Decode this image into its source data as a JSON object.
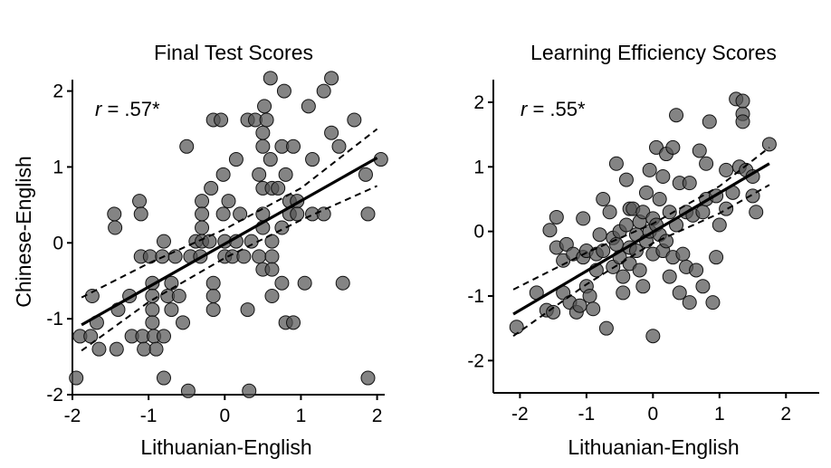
{
  "shared": {
    "ylabel": "Chinese-English"
  },
  "chart_data": [
    {
      "type": "scatter",
      "title": "Final Test Scores",
      "xlabel": "Lithuanian-English",
      "ylabel": "Chinese-English",
      "xlim": [
        -2,
        2.1
      ],
      "ylim": [
        -2,
        2.15
      ],
      "xticks": [
        -2,
        -1,
        0,
        1,
        2
      ],
      "yticks": [
        -2,
        -1,
        0,
        1,
        2
      ],
      "annotation": {
        "r": "r",
        "rest": " = .57*"
      },
      "fit": {
        "x": [
          -1.88,
          2.0
        ],
        "y": [
          -1.08,
          1.12
        ]
      },
      "ci_upper": {
        "x": [
          -1.88,
          -1.0,
          0.0,
          1.0,
          2.0
        ],
        "y": [
          -0.72,
          -0.27,
          0.18,
          0.72,
          1.5
        ]
      },
      "ci_lower": {
        "x": [
          -1.88,
          -1.0,
          0.0,
          1.0,
          2.0
        ],
        "y": [
          -1.42,
          -0.78,
          -0.2,
          0.3,
          0.75
        ]
      },
      "points": [
        [
          -1.95,
          -1.78
        ],
        [
          -1.9,
          -1.23
        ],
        [
          -1.76,
          -1.23
        ],
        [
          -1.74,
          -0.7
        ],
        [
          -1.68,
          -1.05
        ],
        [
          -1.65,
          -1.4
        ],
        [
          -1.45,
          0.38
        ],
        [
          -1.44,
          0.2
        ],
        [
          -1.42,
          -1.4
        ],
        [
          -1.4,
          -0.88
        ],
        [
          -1.25,
          -0.7
        ],
        [
          -1.22,
          -1.23
        ],
        [
          -1.12,
          0.55
        ],
        [
          -1.1,
          0.38
        ],
        [
          -1.1,
          -0.18
        ],
        [
          -1.08,
          -1.23
        ],
        [
          -1.06,
          -1.4
        ],
        [
          -0.98,
          -0.18
        ],
        [
          -0.95,
          -0.53
        ],
        [
          -0.95,
          -0.7
        ],
        [
          -0.95,
          -0.88
        ],
        [
          -0.95,
          -1.05
        ],
        [
          -0.93,
          -1.23
        ],
        [
          -0.9,
          -1.4
        ],
        [
          -0.82,
          -0.18
        ],
        [
          -0.8,
          0.02
        ],
        [
          -0.8,
          -1.23
        ],
        [
          -0.8,
          -1.78
        ],
        [
          -0.75,
          -0.7
        ],
        [
          -0.7,
          -0.53
        ],
        [
          -0.7,
          -0.88
        ],
        [
          -0.65,
          -0.18
        ],
        [
          -0.6,
          -0.7
        ],
        [
          -0.55,
          -1.05
        ],
        [
          -0.5,
          1.27
        ],
        [
          -0.48,
          -1.95
        ],
        [
          -0.45,
          -0.18
        ],
        [
          -0.38,
          0.02
        ],
        [
          -0.32,
          -0.18
        ],
        [
          -0.3,
          0.55
        ],
        [
          -0.3,
          0.38
        ],
        [
          -0.3,
          0.2
        ],
        [
          -0.3,
          0.02
        ],
        [
          -0.2,
          0.02
        ],
        [
          -0.18,
          0.72
        ],
        [
          -0.15,
          1.62
        ],
        [
          -0.15,
          -0.53
        ],
        [
          -0.15,
          -0.7
        ],
        [
          -0.15,
          -0.88
        ],
        [
          -0.05,
          1.62
        ],
        [
          -0.02,
          0.9
        ],
        [
          -0.02,
          0.38
        ],
        [
          0.0,
          0.02
        ],
        [
          0.0,
          -0.18
        ],
        [
          0.05,
          0.55
        ],
        [
          0.1,
          -0.18
        ],
        [
          0.15,
          1.1
        ],
        [
          0.15,
          0.02
        ],
        [
          0.2,
          0.38
        ],
        [
          0.25,
          -0.18
        ],
        [
          0.3,
          1.62
        ],
        [
          0.3,
          -0.88
        ],
        [
          0.32,
          -1.95
        ],
        [
          0.35,
          0.02
        ],
        [
          0.4,
          1.62
        ],
        [
          0.45,
          0.9
        ],
        [
          0.45,
          -0.18
        ],
        [
          0.5,
          1.45
        ],
        [
          0.5,
          1.27
        ],
        [
          0.5,
          0.72
        ],
        [
          0.5,
          0.38
        ],
        [
          0.5,
          0.2
        ],
        [
          0.5,
          -0.35
        ],
        [
          0.52,
          1.8
        ],
        [
          0.55,
          1.62
        ],
        [
          0.6,
          2.17
        ],
        [
          0.6,
          1.1
        ],
        [
          0.62,
          0.72
        ],
        [
          0.62,
          0.02
        ],
        [
          0.62,
          -0.18
        ],
        [
          0.62,
          -0.35
        ],
        [
          0.62,
          -0.7
        ],
        [
          0.7,
          0.72
        ],
        [
          0.75,
          1.27
        ],
        [
          0.75,
          0.2
        ],
        [
          0.75,
          -0.53
        ],
        [
          0.78,
          2.0
        ],
        [
          0.8,
          0.9
        ],
        [
          0.8,
          -1.05
        ],
        [
          0.85,
          0.55
        ],
        [
          0.85,
          0.38
        ],
        [
          0.9,
          1.27
        ],
        [
          0.9,
          -1.05
        ],
        [
          0.95,
          0.55
        ],
        [
          0.95,
          0.38
        ],
        [
          1.05,
          -0.53
        ],
        [
          1.1,
          1.8
        ],
        [
          1.15,
          1.1
        ],
        [
          1.15,
          0.38
        ],
        [
          1.3,
          2.0
        ],
        [
          1.3,
          0.38
        ],
        [
          1.4,
          1.45
        ],
        [
          1.4,
          2.17
        ],
        [
          1.5,
          1.27
        ],
        [
          1.55,
          -0.53
        ],
        [
          1.7,
          1.62
        ],
        [
          1.85,
          0.9
        ],
        [
          1.88,
          0.38
        ],
        [
          1.88,
          -1.78
        ],
        [
          2.05,
          1.1
        ]
      ]
    },
    {
      "type": "scatter",
      "title": "Learning Efficiency Scores",
      "xlabel": "Lithuanian-English",
      "ylabel": "",
      "xlim": [
        -2.4,
        2.5
      ],
      "ylim": [
        -2.5,
        2.35
      ],
      "xticks": [
        -2,
        -1,
        0,
        1,
        2
      ],
      "yticks": [
        -2,
        -1,
        0,
        1,
        2
      ],
      "annotation": {
        "r": "r",
        "rest": " = .55*"
      },
      "fit": {
        "x": [
          -2.1,
          1.75
        ],
        "y": [
          -1.28,
          1.05
        ]
      },
      "ci_upper": {
        "x": [
          -2.1,
          -1.0,
          0.0,
          1.0,
          1.75
        ],
        "y": [
          -0.9,
          -0.33,
          0.12,
          0.7,
          1.3
        ]
      },
      "ci_lower": {
        "x": [
          -2.1,
          -1.0,
          0.0,
          1.0,
          1.75
        ],
        "y": [
          -1.62,
          -0.82,
          -0.18,
          0.28,
          0.72
        ]
      },
      "points": [
        [
          -2.05,
          -1.48
        ],
        [
          -1.75,
          -0.95
        ],
        [
          -1.6,
          -1.22
        ],
        [
          -1.55,
          0.02
        ],
        [
          -1.5,
          -1.25
        ],
        [
          -1.45,
          0.22
        ],
        [
          -1.45,
          -0.25
        ],
        [
          -1.35,
          -0.45
        ],
        [
          -1.35,
          -0.95
        ],
        [
          -1.3,
          -0.2
        ],
        [
          -1.25,
          -1.1
        ],
        [
          -1.2,
          -0.35
        ],
        [
          -1.15,
          -1.25
        ],
        [
          -1.1,
          -1.15
        ],
        [
          -1.05,
          0.2
        ],
        [
          -1.05,
          -0.4
        ],
        [
          -1.0,
          -0.3
        ],
        [
          -1.0,
          -0.85
        ],
        [
          -0.95,
          -1.0
        ],
        [
          -0.9,
          -1.2
        ],
        [
          -0.85,
          -0.6
        ],
        [
          -0.85,
          -0.35
        ],
        [
          -0.8,
          -0.05
        ],
        [
          -0.75,
          0.5
        ],
        [
          -0.75,
          -0.3
        ],
        [
          -0.7,
          -1.5
        ],
        [
          -0.65,
          0.3
        ],
        [
          -0.6,
          -0.1
        ],
        [
          -0.6,
          -0.55
        ],
        [
          -0.55,
          1.05
        ],
        [
          -0.55,
          -0.2
        ],
        [
          -0.5,
          0.0
        ],
        [
          -0.5,
          -0.4
        ],
        [
          -0.45,
          -0.7
        ],
        [
          -0.45,
          -0.95
        ],
        [
          -0.4,
          0.8
        ],
        [
          -0.4,
          0.1
        ],
        [
          -0.35,
          0.35
        ],
        [
          -0.35,
          -0.25
        ],
        [
          -0.35,
          -0.5
        ],
        [
          -0.3,
          0.35
        ],
        [
          -0.25,
          -0.05
        ],
        [
          -0.25,
          -0.3
        ],
        [
          -0.2,
          0.15
        ],
        [
          -0.2,
          -0.6
        ],
        [
          -0.15,
          0.3
        ],
        [
          -0.15,
          -0.85
        ],
        [
          -0.1,
          0.6
        ],
        [
          -0.1,
          -0.15
        ],
        [
          -0.05,
          0.95
        ],
        [
          -0.05,
          0.0
        ],
        [
          0.0,
          0.2
        ],
        [
          0.0,
          -0.35
        ],
        [
          0.0,
          -1.62
        ],
        [
          0.05,
          1.3
        ],
        [
          0.05,
          0.1
        ],
        [
          0.1,
          0.5
        ],
        [
          0.1,
          -0.05
        ],
        [
          0.15,
          0.85
        ],
        [
          0.15,
          -0.3
        ],
        [
          0.2,
          1.2
        ],
        [
          0.2,
          -0.15
        ],
        [
          0.25,
          0.3
        ],
        [
          0.25,
          -0.7
        ],
        [
          0.3,
          1.3
        ],
        [
          0.3,
          -0.4
        ],
        [
          0.35,
          1.8
        ],
        [
          0.35,
          0.1
        ],
        [
          0.4,
          0.75
        ],
        [
          0.4,
          -0.95
        ],
        [
          0.45,
          -0.35
        ],
        [
          0.5,
          0.3
        ],
        [
          0.5,
          -0.55
        ],
        [
          0.55,
          0.75
        ],
        [
          0.55,
          -1.1
        ],
        [
          0.6,
          0.25
        ],
        [
          0.65,
          -0.6
        ],
        [
          0.7,
          1.25
        ],
        [
          0.75,
          0.3
        ],
        [
          0.75,
          -0.85
        ],
        [
          0.8,
          1.05
        ],
        [
          0.8,
          0.5
        ],
        [
          0.85,
          1.7
        ],
        [
          0.9,
          -1.1
        ],
        [
          0.95,
          0.55
        ],
        [
          0.95,
          -0.4
        ],
        [
          1.0,
          0.1
        ],
        [
          1.1,
          0.95
        ],
        [
          1.1,
          0.35
        ],
        [
          1.2,
          0.6
        ],
        [
          1.25,
          2.05
        ],
        [
          1.3,
          1.0
        ],
        [
          1.35,
          1.82
        ],
        [
          1.35,
          1.7
        ],
        [
          1.35,
          2.02
        ],
        [
          1.4,
          0.95
        ],
        [
          1.5,
          0.85
        ],
        [
          1.5,
          0.55
        ],
        [
          1.55,
          0.3
        ],
        [
          1.75,
          1.35
        ]
      ]
    }
  ]
}
